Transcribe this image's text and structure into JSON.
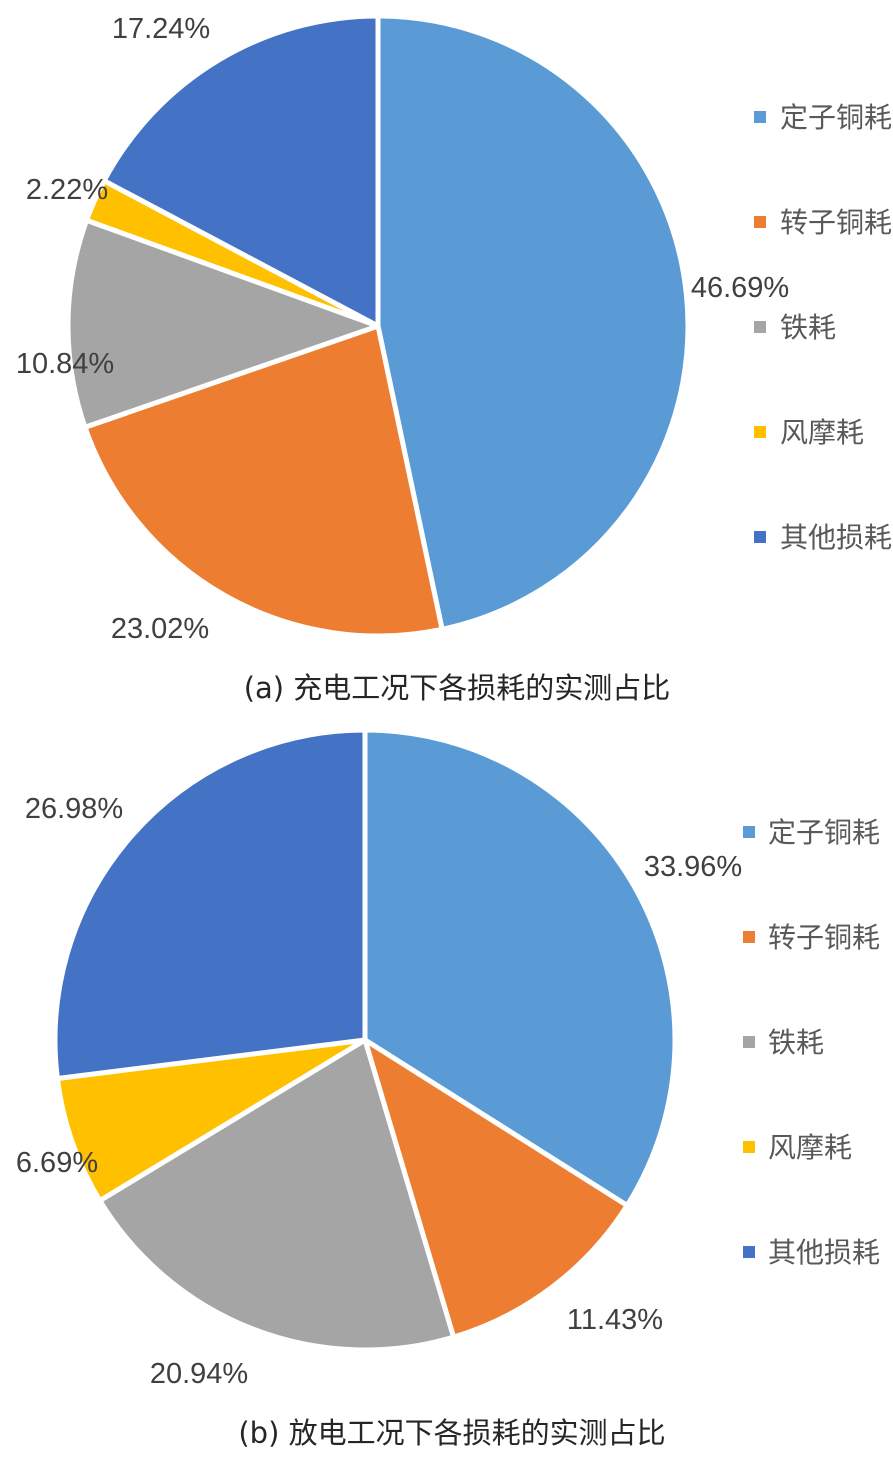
{
  "chart_data": [
    {
      "type": "pie",
      "caption": "(a) 充电工况下各损耗的实测占比",
      "categories": [
        "定子铜耗",
        "转子铜耗",
        "铁耗",
        "风摩耗",
        "其他损耗"
      ],
      "values": [
        46.69,
        23.02,
        10.84,
        2.22,
        17.24
      ],
      "labels": [
        "46.69%",
        "23.02%",
        "10.84%",
        "2.22%",
        "17.24%"
      ],
      "colors": [
        "#5B9BD5",
        "#ED7D31",
        "#A5A5A5",
        "#FFC000",
        "#4472C4"
      ],
      "start_angle": "12 o'clock, clockwise",
      "legend": "right"
    },
    {
      "type": "pie",
      "caption": "(b) 放电工况下各损耗的实测占比",
      "categories": [
        "定子铜耗",
        "转子铜耗",
        "铁耗",
        "风摩耗",
        "其他损耗"
      ],
      "values": [
        33.96,
        11.43,
        20.94,
        6.69,
        26.98
      ],
      "labels": [
        "33.96%",
        "11.43%",
        "20.94%",
        "6.69%",
        "26.98%"
      ],
      "colors": [
        "#5B9BD5",
        "#ED7D31",
        "#A5A5A5",
        "#FFC000",
        "#4472C4"
      ],
      "start_angle": "12 o'clock, clockwise",
      "legend": "right"
    }
  ]
}
